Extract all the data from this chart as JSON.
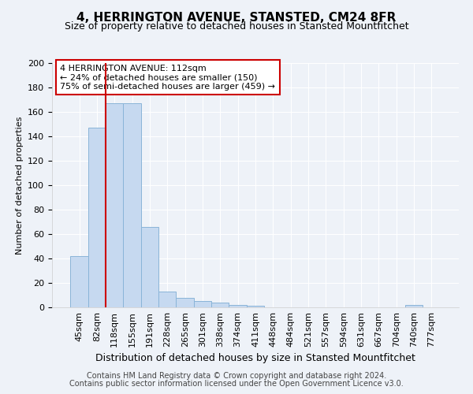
{
  "title": "4, HERRINGTON AVENUE, STANSTED, CM24 8FR",
  "subtitle": "Size of property relative to detached houses in Stansted Mountfitchet",
  "xlabel": "Distribution of detached houses by size in Stansted Mountfitchet",
  "ylabel": "Number of detached properties",
  "footnote1": "Contains HM Land Registry data © Crown copyright and database right 2024.",
  "footnote2": "Contains public sector information licensed under the Open Government Licence v3.0.",
  "bar_labels": [
    "45sqm",
    "82sqm",
    "118sqm",
    "155sqm",
    "191sqm",
    "228sqm",
    "265sqm",
    "301sqm",
    "338sqm",
    "374sqm",
    "411sqm",
    "448sqm",
    "484sqm",
    "521sqm",
    "557sqm",
    "594sqm",
    "631sqm",
    "667sqm",
    "704sqm",
    "740sqm",
    "777sqm"
  ],
  "bar_values": [
    42,
    147,
    167,
    167,
    66,
    13,
    8,
    5,
    4,
    2,
    1,
    0,
    0,
    0,
    0,
    0,
    0,
    0,
    0,
    2,
    0
  ],
  "bar_color": "#c6d9f0",
  "bar_edgecolor": "#8ab4d8",
  "vline_x": 1.5,
  "vline_color": "#cc0000",
  "annotation_text": "4 HERRINGTON AVENUE: 112sqm\n← 24% of detached houses are smaller (150)\n75% of semi-detached houses are larger (459) →",
  "annotation_box_color": "#cc0000",
  "ylim": [
    0,
    200
  ],
  "yticks": [
    0,
    20,
    40,
    60,
    80,
    100,
    120,
    140,
    160,
    180,
    200
  ],
  "background_color": "#eef2f8",
  "grid_color": "#ffffff",
  "title_fontsize": 11,
  "subtitle_fontsize": 9,
  "ylabel_fontsize": 8,
  "xlabel_fontsize": 9,
  "tick_fontsize": 8,
  "annotation_fontsize": 8,
  "footnote_fontsize": 7
}
